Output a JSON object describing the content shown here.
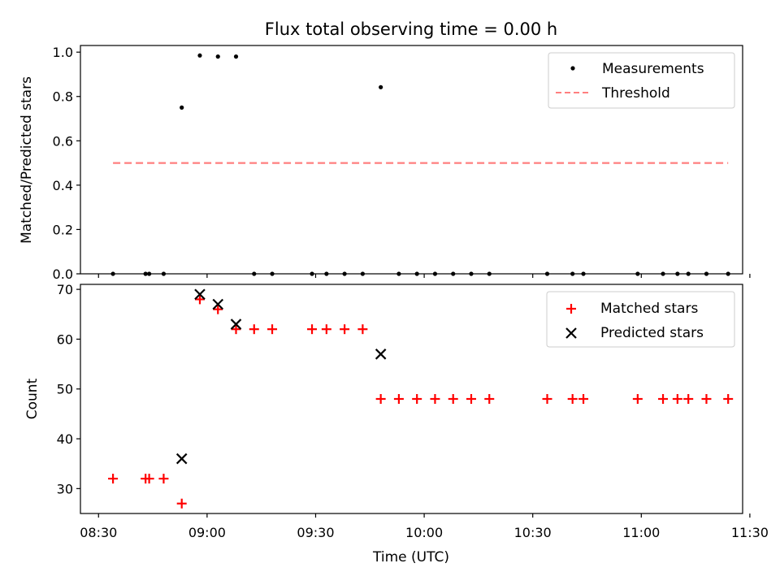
{
  "figure": {
    "title": "Flux total observing time = 0.00 h",
    "xlabel": "Time (UTC)"
  },
  "chart_data": [
    {
      "type": "scatter",
      "panel": "top",
      "ylabel": "Matched/Predicted stars",
      "xlim": [
        "08:25",
        "11:28"
      ],
      "ylim": [
        0,
        1.03
      ],
      "yticks": [
        "0.0",
        "0.2",
        "0.4",
        "0.6",
        "0.8",
        "1.0"
      ],
      "legend_position": "top-right",
      "series": [
        {
          "name": "Measurements",
          "kind": "scatter",
          "marker": "dot",
          "color": "#000000",
          "x": [
            "08:34",
            "08:43",
            "08:44",
            "08:48",
            "08:53",
            "08:58",
            "09:03",
            "09:08",
            "09:13",
            "09:18",
            "09:29",
            "09:33",
            "09:38",
            "09:43",
            "09:48",
            "09:53",
            "09:58",
            "10:03",
            "10:08",
            "10:13",
            "10:18",
            "10:34",
            "10:41",
            "10:44",
            "10:59",
            "11:06",
            "11:10",
            "11:13",
            "11:18",
            "11:24"
          ],
          "y": [
            0,
            0,
            0,
            0,
            0.75,
            0.985,
            0.98,
            0.98,
            0,
            0,
            0,
            0,
            0,
            0,
            0.842,
            0,
            0,
            0,
            0,
            0,
            0,
            0,
            0,
            0,
            0,
            0,
            0,
            0,
            0,
            0
          ]
        },
        {
          "name": "Threshold",
          "kind": "line",
          "style": "dashed",
          "color": "#ff7f7f",
          "x": [
            "08:34",
            "11:24"
          ],
          "y": [
            0.5,
            0.5
          ]
        }
      ]
    },
    {
      "type": "scatter",
      "panel": "bottom",
      "ylabel": "Count",
      "xlim": [
        "08:25",
        "11:28"
      ],
      "ylim": [
        25,
        71
      ],
      "yticks": [
        "30",
        "40",
        "50",
        "60",
        "70"
      ],
      "xticks": [
        "08:30",
        "09:00",
        "09:30",
        "10:00",
        "10:30",
        "11:00",
        "11:30"
      ],
      "legend_position": "top-right",
      "series": [
        {
          "name": "Matched stars",
          "kind": "scatter",
          "marker": "plus",
          "color": "#ff0000",
          "x": [
            "08:34",
            "08:43",
            "08:44",
            "08:48",
            "08:53",
            "08:58",
            "09:03",
            "09:08",
            "09:13",
            "09:18",
            "09:29",
            "09:33",
            "09:38",
            "09:43",
            "09:48",
            "09:53",
            "09:58",
            "10:03",
            "10:08",
            "10:13",
            "10:18",
            "10:34",
            "10:41",
            "10:44",
            "10:59",
            "11:06",
            "11:10",
            "11:13",
            "11:18",
            "11:24"
          ],
          "y": [
            32,
            32,
            32,
            32,
            27,
            68,
            66,
            62,
            62,
            62,
            62,
            62,
            62,
            62,
            48,
            48,
            48,
            48,
            48,
            48,
            48,
            48,
            48,
            48,
            48,
            48,
            48,
            48,
            48,
            48
          ]
        },
        {
          "name": "Predicted stars",
          "kind": "scatter",
          "marker": "x",
          "color": "#000000",
          "x": [
            "08:53",
            "08:58",
            "09:03",
            "09:08",
            "09:48"
          ],
          "y": [
            36,
            69,
            67,
            63,
            57
          ]
        }
      ]
    }
  ]
}
